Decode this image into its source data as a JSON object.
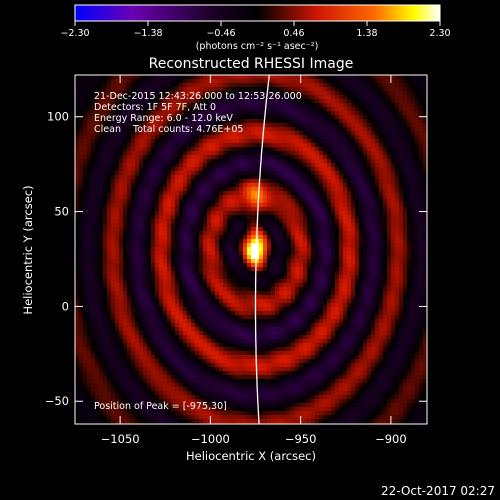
{
  "chart_data": {
    "type": "heatmap",
    "title": "Reconstructed RHESSI Image",
    "xlabel": "Heliocentric X (arcsec)",
    "ylabel": "Heliocentric Y (arcsec)",
    "xlim": [
      -1075,
      -880
    ],
    "ylim": [
      -62,
      122
    ],
    "x_ticks": [
      -1050,
      -1000,
      -950,
      -900
    ],
    "y_ticks": [
      -50,
      0,
      50,
      100
    ],
    "x_tick_labels": [
      "−1050",
      "−1000",
      "−950",
      "−900"
    ],
    "y_tick_labels": [
      "−50",
      "0",
      "50",
      "100"
    ],
    "colorbar": {
      "min": -2.3,
      "max": 2.3,
      "ticks": [
        -2.3,
        -1.38,
        -0.46,
        0.46,
        1.38,
        2.3
      ],
      "tick_labels": [
        "−2.30",
        "−1.38",
        "−0.46",
        "0.46",
        "1.38",
        "2.30"
      ],
      "unit_label": "(photons cm⁻² s⁻¹ asec⁻²)",
      "colors": [
        "#0000ff",
        "#6a00b0",
        "#1a0024",
        "#000000",
        "#cc1400",
        "#ff6a00",
        "#ffff00",
        "#ffffff"
      ]
    },
    "annotations": [
      "21-Dec-2015 12:43:26.000 to 12:53:26.000",
      "Detectors: 1F 5F 7F, Att 0",
      "Energy Range: 6.0 - 12.0 keV",
      "Clean    Total counts: 4.76E+05"
    ],
    "peak": {
      "x": -975,
      "y": 30,
      "label": "Position of Peak = [-975,30]"
    },
    "source_components": [
      {
        "x": -975,
        "y": 30,
        "sigma_x": 5,
        "sigma_y": 8,
        "amp": 2.3
      },
      {
        "x": -975,
        "y": 56,
        "sigma_x": 4,
        "sigma_y": 8,
        "amp": 0.9
      }
    ],
    "limb_x": -975,
    "grid": false
  },
  "footer": {
    "timestamp": "22-Oct-2017 02:27"
  }
}
